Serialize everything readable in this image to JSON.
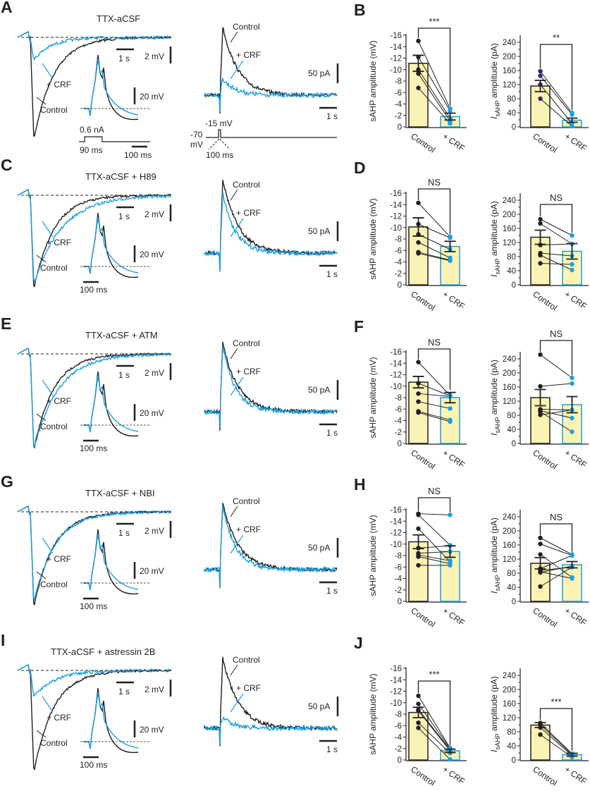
{
  "colors": {
    "control": "#231f20",
    "crf": "#1ba0e2",
    "bar_fill": "#fbf3b3",
    "control_dot": "#231f20",
    "crf_dot": "#1ba0e2",
    "control_dot_B_current": "#2e2a7a"
  },
  "panels": [
    {
      "letter": "A",
      "title": "TTX-aCSF",
      "voltage": {
        "crf_label": "+ CRF",
        "control_label": "Control",
        "time_scale": "1 s",
        "volt_scale": "2 mV",
        "inset_scale": "20 mV",
        "inset_time": "100 ms",
        "stim_amp": "0.6 nA",
        "stim_dur": "90 ms"
      },
      "current": {
        "control_label": "Control",
        "crf_label": "+ CRF",
        "amp_scale": "50 pA",
        "time_scale": "1 s",
        "step_label": "-15 mV",
        "hold_label": "-70",
        "hold_unit": "mV",
        "step_dur": "100 ms"
      }
    },
    {
      "letter": "C",
      "title": "TTX-aCSF + H89",
      "voltage": {
        "crf_label": "+ CRF",
        "control_label": "Control",
        "time_scale": "1 s",
        "volt_scale": "2 mV",
        "inset_scale": "20 mV",
        "inset_time": "100 ms"
      },
      "current": {
        "control_label": "Control",
        "crf_label": "+ CRF",
        "amp_scale": "50 pA",
        "time_scale": "1 s"
      }
    },
    {
      "letter": "E",
      "title": "TTX-aCSF + ATM",
      "voltage": {
        "crf_label": "+ CRF",
        "control_label": "Control",
        "time_scale": "1 s",
        "volt_scale": "2 mV",
        "inset_scale": "20 mV",
        "inset_time": "100 ms"
      },
      "current": {
        "control_label": "Control",
        "crf_label": "+ CRF",
        "amp_scale": "50 pA",
        "time_scale": "1 s"
      }
    },
    {
      "letter": "G",
      "title": "TTX-aCSF + NBI",
      "voltage": {
        "crf_label": "+ CRF",
        "control_label": "Control",
        "time_scale": "1 s",
        "volt_scale": "2 mV",
        "inset_scale": "20 mV",
        "inset_time": "100 ms"
      },
      "current": {
        "control_label": "Control",
        "crf_label": "+ CRF",
        "amp_scale": "50 pA",
        "time_scale": "1 s"
      }
    },
    {
      "letter": "I",
      "title": "TTX-aCSF + astressin 2B",
      "voltage": {
        "crf_label": "+ CRF",
        "control_label": "Control",
        "time_scale": "1 s",
        "volt_scale": "2 mV",
        "inset_scale": "20 mV",
        "inset_time": "100 ms"
      },
      "current": {
        "control_label": "Control",
        "crf_label": "+ CRF",
        "amp_scale": "50 pA",
        "time_scale": "1 s"
      }
    }
  ],
  "chart_data": [
    {
      "panel": "B",
      "type": "bar",
      "ylabel": "sAHP amplitude (mV)",
      "categories": [
        "Control",
        "+ CRF"
      ],
      "ylim": [
        0,
        -16
      ],
      "yticks": [
        "-16",
        "-14",
        "-12",
        "-10",
        "-8",
        "-6",
        "-4",
        "-2",
        "0"
      ],
      "significance": "***",
      "means": [
        11.1,
        1.8
      ],
      "sem": [
        1.4,
        0.6
      ],
      "points": [
        [
          15,
          12.2,
          10,
          9.3,
          6.8
        ],
        [
          3.2,
          2.8,
          1.5,
          1.0,
          0.6
        ]
      ]
    },
    {
      "panel": "B",
      "type": "bar",
      "ylabel_main": "I",
      "ylabel_sub": "sAHP",
      "ylabel_rest": " amplitude (pA)",
      "categories": [
        "Control",
        "+ CRF"
      ],
      "ylim": [
        0,
        260
      ],
      "yticks": [
        "0",
        "40",
        "80",
        "120",
        "160",
        "200",
        "240"
      ],
      "significance": "**",
      "means": [
        116,
        19
      ],
      "sem": [
        16,
        6
      ],
      "points": [
        [
          158,
          145,
          120,
          80
        ],
        [
          40,
          35,
          10,
          2
        ]
      ]
    },
    {
      "panel": "D",
      "type": "bar",
      "ylabel": "sAHP amplitude (mV)",
      "categories": [
        "Control",
        "+ CRF"
      ],
      "ylim": [
        0,
        -16
      ],
      "yticks": [
        "-16",
        "-14",
        "-12",
        "-10",
        "-8",
        "-6",
        "-4",
        "-2",
        "0"
      ],
      "significance": "NS",
      "means": [
        10.1,
        6.7
      ],
      "sem": [
        1.6,
        0.9
      ],
      "points": [
        [
          14.3,
          10.6,
          8.8,
          7.4,
          5.7,
          5.5
        ],
        [
          8.4,
          8.2,
          6.2,
          4.7,
          4.3,
          4.2
        ]
      ]
    },
    {
      "panel": "D",
      "type": "bar",
      "ylabel_main": "I",
      "ylabel_sub": "sAHP",
      "ylabel_rest": " amplitude (pA)",
      "categories": [
        "Control",
        "+ CRF"
      ],
      "ylim": [
        0,
        260
      ],
      "yticks": [
        "0",
        "40",
        "80",
        "120",
        "160",
        "200",
        "240"
      ],
      "significance": "NS",
      "means": [
        135,
        95
      ],
      "sem": [
        20,
        22
      ],
      "points": [
        [
          186,
          174,
          113,
          90,
          84,
          61
        ],
        [
          140,
          116,
          116,
          82,
          42,
          58
        ]
      ]
    },
    {
      "panel": "F",
      "type": "bar",
      "ylabel": "sAHP amplitude (mV)",
      "categories": [
        "Control",
        "+ CRF"
      ],
      "ylim": [
        0,
        -16
      ],
      "yticks": [
        "-16",
        "-14",
        "-12",
        "-10",
        "-8",
        "-6",
        "-4",
        "-2",
        "0"
      ],
      "significance": "NS",
      "means": [
        10.7,
        8.0
      ],
      "sem": [
        1.0,
        0.9
      ],
      "points": [
        [
          14.2,
          10.5,
          8.7,
          7.3,
          5.6,
          5.4
        ],
        [
          8.4,
          8.3,
          8.2,
          6.1,
          4.1,
          3.8
        ]
      ]
    },
    {
      "panel": "F",
      "type": "bar",
      "ylabel_main": "I",
      "ylabel_sub": "sAHP",
      "ylabel_rest": " amplitude (pA)",
      "categories": [
        "Control",
        "+ CRF"
      ],
      "ylim": [
        0,
        260
      ],
      "yticks": [
        "0",
        "40",
        "80",
        "120",
        "160",
        "200",
        "240"
      ],
      "significance": "NS",
      "means": [
        130,
        110
      ],
      "sem": [
        23,
        23
      ],
      "points": [
        [
          252,
          162,
          97,
          93,
          90,
          81
        ],
        [
          186,
          170,
          95,
          72,
          33,
          95
        ]
      ]
    },
    {
      "panel": "H",
      "type": "bar",
      "ylabel": "sAHP amplitude (mV)",
      "categories": [
        "Control",
        "+ CRF"
      ],
      "ylim": [
        0,
        -16
      ],
      "yticks": [
        "-16",
        "-14",
        "-12",
        "-10",
        "-8",
        "-6",
        "-4",
        "-2",
        "0"
      ],
      "significance": "NS",
      "means": [
        10.4,
        8.7
      ],
      "sem": [
        1.2,
        1.0
      ],
      "points": [
        [
          15.3,
          15.1,
          12.7,
          9.3,
          8.4,
          8.1,
          7.8,
          6.3
        ],
        [
          15.1,
          9.8,
          6.9,
          9.7,
          8.7,
          7.1,
          6.6,
          6.3
        ]
      ]
    },
    {
      "panel": "H",
      "type": "bar",
      "ylabel_main": "I",
      "ylabel_sub": "sAHP",
      "ylabel_rest": " amplitude (pA)",
      "categories": [
        "Control",
        "+ CRF"
      ],
      "ylim": [
        0,
        260
      ],
      "yticks": [
        "0",
        "40",
        "80",
        "120",
        "160",
        "200",
        "240"
      ],
      "significance": "NS",
      "means": [
        108,
        104
      ],
      "sem": [
        16,
        9
      ],
      "points": [
        [
          180,
          163,
          133,
          93,
          88,
          84,
          82,
          42
        ],
        [
          133,
          130,
          68,
          130,
          97,
          65,
          100,
          97
        ]
      ]
    },
    {
      "panel": "J",
      "type": "bar",
      "ylabel": "sAHP amplitude (mV)",
      "categories": [
        "Control",
        "+ CRF"
      ],
      "ylim": [
        0,
        -16
      ],
      "yticks": [
        "-16",
        "-14",
        "-12",
        "-10",
        "-8",
        "-6",
        "-4",
        "-2",
        "0"
      ],
      "significance": "***",
      "means": [
        8.3,
        1.6
      ],
      "sem": [
        0.9,
        0.3
      ],
      "points": [
        [
          11.2,
          9.8,
          8.8,
          8.6,
          6.5,
          5.6
        ],
        [
          2.1,
          2.0,
          1.8,
          1.6,
          1.2,
          0.1
        ]
      ]
    },
    {
      "panel": "J",
      "type": "bar",
      "ylabel_main": "I",
      "ylabel_sub": "sAHP",
      "ylabel_rest": " amplitude (pA)",
      "categories": [
        "Control",
        "+ CRF"
      ],
      "ylim": [
        0,
        260
      ],
      "yticks": [
        "0",
        "40",
        "80",
        "120",
        "160",
        "200",
        "240"
      ],
      "significance": "***",
      "means": [
        99,
        15
      ],
      "sem": [
        7,
        4
      ],
      "points": [
        [
          105,
          100,
          92,
          72
        ],
        [
          18,
          15,
          12,
          8
        ]
      ]
    }
  ]
}
